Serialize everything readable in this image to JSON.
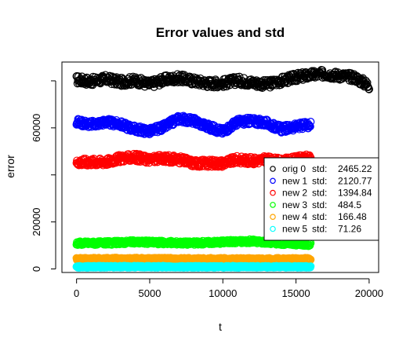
{
  "chart_data": {
    "type": "scatter",
    "title": "Error values and std",
    "xlabel": "t",
    "ylabel": "error",
    "xlim": [
      -1000,
      20650
    ],
    "ylim": [
      -1500,
      88000
    ],
    "xticks": [
      0,
      5000,
      10000,
      15000,
      20000
    ],
    "xtick_labels": [
      "0",
      "5000",
      "10000",
      "15000",
      "20000"
    ],
    "yticks": [
      0,
      20000,
      40000,
      60000,
      80000
    ],
    "ytick_labels": [
      "0",
      "20000",
      "",
      "60000",
      ""
    ],
    "grid": false,
    "legend_position": "right",
    "series": [
      {
        "name": "orig 0",
        "std_label": "std:",
        "std": "2465.22",
        "color": "#000000",
        "x": [
          0,
          1000,
          2000,
          3000,
          4000,
          5000,
          6000,
          7000,
          8000,
          9000,
          10000,
          11000,
          12000,
          13000,
          14000,
          15000,
          16000,
          17000,
          18000,
          19000,
          20000
        ],
        "y": [
          80500,
          79800,
          80800,
          79500,
          80200,
          78500,
          80500,
          81200,
          80000,
          79000,
          79000,
          80200,
          79300,
          78500,
          80000,
          81500,
          82500,
          83000,
          82200,
          81500,
          78000
        ],
        "band": 3600
      },
      {
        "name": "new 1",
        "std_label": "std:",
        "std": "2120.77",
        "color": "#0000ff",
        "x": [
          0,
          1000,
          2000,
          3000,
          4000,
          5000,
          6000,
          7000,
          8000,
          9000,
          10000,
          11000,
          12000,
          13000,
          14000,
          15000,
          16000
        ],
        "y": [
          62500,
          61500,
          62500,
          61500,
          59500,
          58500,
          60500,
          64000,
          63000,
          60500,
          58500,
          62500,
          63000,
          62000,
          59500,
          60500,
          61500
        ],
        "band": 3000
      },
      {
        "name": "new 2",
        "std_label": "std:",
        "std": "1394.84",
        "color": "#ff0000",
        "x": [
          0,
          1000,
          2000,
          3000,
          4000,
          5000,
          6000,
          7000,
          8000,
          9000,
          10000,
          11000,
          12000,
          13000,
          14000,
          15000,
          16000
        ],
        "y": [
          45500,
          45500,
          45500,
          47000,
          47500,
          46500,
          47000,
          46500,
          45000,
          45000,
          45000,
          46500,
          46000,
          46500,
          45500,
          46500,
          47500
        ],
        "band": 3200
      },
      {
        "name": "new 3",
        "std_label": "std:",
        "std": "484.5",
        "color": "#00ff00",
        "x": [
          0,
          2000,
          4000,
          6000,
          8000,
          10000,
          12000,
          14000,
          16000
        ],
        "y": [
          11000,
          11000,
          11500,
          11200,
          11000,
          11500,
          11800,
          11000,
          10500
        ],
        "band": 1600
      },
      {
        "name": "new 4",
        "std_label": "std:",
        "std": "166.48",
        "color": "#ffa500",
        "x": [
          0,
          4000,
          8000,
          12000,
          16000
        ],
        "y": [
          4200,
          4300,
          4200,
          4100,
          4200
        ],
        "band": 1000
      },
      {
        "name": "new 5",
        "std_label": "std:",
        "std": "71.26",
        "color": "#00ffff",
        "x": [
          0,
          4000,
          8000,
          12000,
          16000
        ],
        "y": [
          900,
          950,
          900,
          920,
          900
        ],
        "band": 700
      }
    ]
  }
}
